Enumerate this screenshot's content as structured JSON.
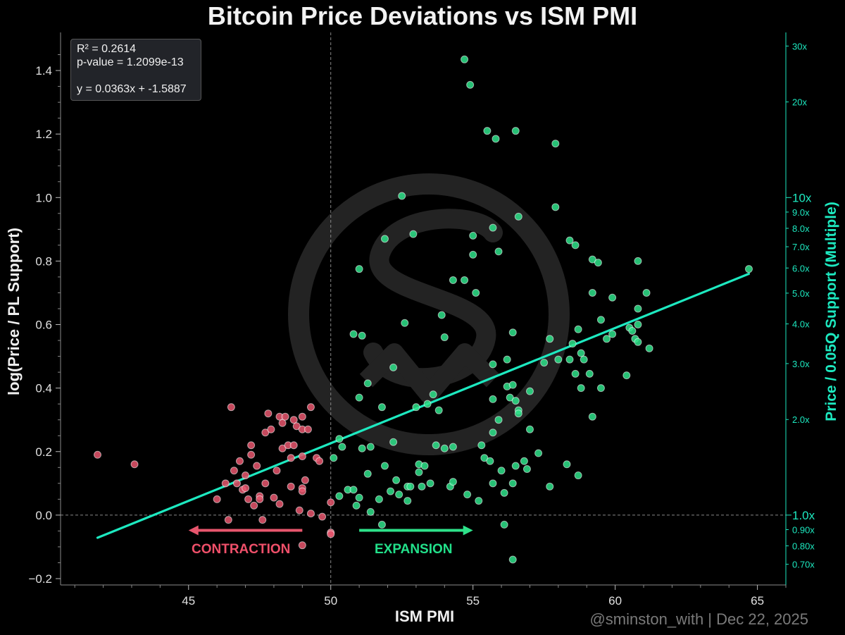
{
  "colors": {
    "background": "#000000",
    "contraction": "#e8566d",
    "expansion": "#2ee28a",
    "trend": "#1de9c0",
    "right_axis": "#1de9c0",
    "watermark": "#262626"
  },
  "stats": {
    "r2": "R² = 0.2614",
    "pvalue": "p-value = 1.2099e-13",
    "equation": "y = 0.0363x + -1.5887"
  },
  "annotations": {
    "contraction": "CONTRACTION",
    "expansion": "EXPANSION"
  },
  "credit": "@sminston_with  |  Dec 22, 2025",
  "watermark_icon": "sw-logo-icon",
  "chart_data": {
    "type": "scatter",
    "title": "Bitcoin Price Deviations vs ISM PMI",
    "xlabel": "ISM PMI",
    "ylabel": "log(Price / PL Support)",
    "y2label": "Price / 0.05Q Support (Multiple)",
    "xlim": [
      40.5,
      66
    ],
    "ylim": [
      -0.22,
      1.52
    ],
    "xticks": [
      45,
      50,
      55,
      60,
      65
    ],
    "yticks": [
      -0.2,
      0.0,
      0.2,
      0.4,
      0.6,
      0.8,
      1.0,
      1.2,
      1.4
    ],
    "ytick_labels": [
      "−0.2",
      "0.0",
      "0.2",
      "0.4",
      "0.6",
      "0.8",
      "1.0",
      "1.2",
      "1.4"
    ],
    "y2_ticks": [
      {
        "label": "0.70x",
        "value": 0.7,
        "major": false
      },
      {
        "label": "0.80x",
        "value": 0.8,
        "major": false
      },
      {
        "label": "0.90x",
        "value": 0.9,
        "major": false
      },
      {
        "label": "1.0x",
        "value": 1.0,
        "major": true
      },
      {
        "label": "2.0x",
        "value": 2.0,
        "major": false
      },
      {
        "label": "3.0x",
        "value": 3.0,
        "major": false
      },
      {
        "label": "4.0x",
        "value": 4.0,
        "major": false
      },
      {
        "label": "5.0x",
        "value": 5.0,
        "major": false
      },
      {
        "label": "6.0x",
        "value": 6.0,
        "major": false
      },
      {
        "label": "7.0x",
        "value": 7.0,
        "major": false
      },
      {
        "label": "8.0x",
        "value": 8.0,
        "major": false
      },
      {
        "label": "9.0x",
        "value": 9.0,
        "major": false
      },
      {
        "label": "10x",
        "value": 10.0,
        "major": true
      },
      {
        "label": "20x",
        "value": 20.0,
        "major": false
      },
      {
        "label": "30x",
        "value": 30.0,
        "major": false
      }
    ],
    "ref_x": 50,
    "ref_y": 0,
    "regression": {
      "slope": 0.0363,
      "intercept": -1.5887,
      "x_start": 41.8,
      "x_end": 64.7
    },
    "series": [
      {
        "name": "Contraction",
        "color": "#e8566d",
        "points": [
          [
            41.8,
            0.19
          ],
          [
            43.1,
            0.16
          ],
          [
            46.0,
            0.05
          ],
          [
            46.3,
            0.1
          ],
          [
            46.4,
            -0.015
          ],
          [
            46.5,
            0.34
          ],
          [
            46.6,
            0.14
          ],
          [
            46.7,
            0.1
          ],
          [
            46.8,
            0.17
          ],
          [
            46.9,
            0.08
          ],
          [
            47.0,
            0.125
          ],
          [
            47.1,
            0.05
          ],
          [
            47.2,
            0.19
          ],
          [
            47.2,
            0.22
          ],
          [
            47.3,
            0.03
          ],
          [
            47.4,
            0.155
          ],
          [
            47.5,
            0.06
          ],
          [
            47.6,
            -0.015
          ],
          [
            47.7,
            0.26
          ],
          [
            47.7,
            0.1
          ],
          [
            47.8,
            0.32
          ],
          [
            47.9,
            0.27
          ],
          [
            48.0,
            0.055
          ],
          [
            48.1,
            0.14
          ],
          [
            48.2,
            0.31
          ],
          [
            48.3,
            0.21
          ],
          [
            48.3,
            0.29
          ],
          [
            48.4,
            0.31
          ],
          [
            48.5,
            0.22
          ],
          [
            48.6,
            0.18
          ],
          [
            48.7,
            0.3
          ],
          [
            48.7,
            0.22
          ],
          [
            48.8,
            0.28
          ],
          [
            48.9,
            0.015
          ],
          [
            49.0,
            0.27
          ],
          [
            49.0,
            0.31
          ],
          [
            49.0,
            0.185
          ],
          [
            49.0,
            0.085
          ],
          [
            49.0,
            0.075
          ],
          [
            49.0,
            -0.095
          ],
          [
            49.1,
            0.11
          ],
          [
            49.2,
            0.27
          ],
          [
            49.3,
            0.34
          ],
          [
            49.3,
            0.005
          ],
          [
            49.5,
            0.18
          ],
          [
            49.6,
            0.17
          ],
          [
            49.7,
            -0.005
          ],
          [
            50.0,
            0.04
          ],
          [
            50.0,
            -0.055
          ],
          [
            50.0,
            -0.06
          ],
          [
            47.0,
            0.085
          ],
          [
            47.5,
            0.05
          ],
          [
            48.2,
            0.035
          ],
          [
            48.6,
            0.09
          ]
        ]
      },
      {
        "name": "Expansion",
        "color": "#2ee28a",
        "points": [
          [
            50.1,
            0.18
          ],
          [
            50.3,
            0.06
          ],
          [
            50.3,
            0.24
          ],
          [
            50.4,
            0.215
          ],
          [
            50.6,
            0.08
          ],
          [
            50.8,
            0.57
          ],
          [
            50.8,
            0.08
          ],
          [
            50.9,
            0.03
          ],
          [
            51.0,
            0.37
          ],
          [
            51.0,
            0.775
          ],
          [
            51.0,
            0.055
          ],
          [
            51.1,
            0.565
          ],
          [
            51.1,
            0.21
          ],
          [
            51.3,
            0.13
          ],
          [
            51.3,
            0.415
          ],
          [
            51.4,
            0.01
          ],
          [
            51.4,
            0.215
          ],
          [
            51.7,
            0.05
          ],
          [
            51.8,
            0.34
          ],
          [
            51.8,
            -0.03
          ],
          [
            51.9,
            0.155
          ],
          [
            51.9,
            0.87
          ],
          [
            52.1,
            0.075
          ],
          [
            52.2,
            0.465
          ],
          [
            52.2,
            0.23
          ],
          [
            52.3,
            0.11
          ],
          [
            52.4,
            0.065
          ],
          [
            52.5,
            1.005
          ],
          [
            52.6,
            0.605
          ],
          [
            52.7,
            0.045
          ],
          [
            52.7,
            0.09
          ],
          [
            52.8,
            0.09
          ],
          [
            52.9,
            0.885
          ],
          [
            53.0,
            0.34
          ],
          [
            53.1,
            0.135
          ],
          [
            53.1,
            0.16
          ],
          [
            53.2,
            0.09
          ],
          [
            53.3,
            0.155
          ],
          [
            53.4,
            0.35
          ],
          [
            53.5,
            0.1
          ],
          [
            53.6,
            0.38
          ],
          [
            53.7,
            0.22
          ],
          [
            53.8,
            0.33
          ],
          [
            53.9,
            0.63
          ],
          [
            54.0,
            0.56
          ],
          [
            54.0,
            0.21
          ],
          [
            54.2,
            0.09
          ],
          [
            54.3,
            0.74
          ],
          [
            54.3,
            0.105
          ],
          [
            54.3,
            0.215
          ],
          [
            54.7,
            1.435
          ],
          [
            54.9,
            1.355
          ],
          [
            54.7,
            0.74
          ],
          [
            54.8,
            0.065
          ],
          [
            55.0,
            0.82
          ],
          [
            55.0,
            0.88
          ],
          [
            55.1,
            0.7
          ],
          [
            55.2,
            0.045
          ],
          [
            55.3,
            0.22
          ],
          [
            55.4,
            0.18
          ],
          [
            55.5,
            1.21
          ],
          [
            55.6,
            0.17
          ],
          [
            55.7,
            0.26
          ],
          [
            55.7,
            0.1
          ],
          [
            55.7,
            0.365
          ],
          [
            55.7,
            0.475
          ],
          [
            55.7,
            0.905
          ],
          [
            55.8,
            1.185
          ],
          [
            55.9,
            0.83
          ],
          [
            55.9,
            0.3
          ],
          [
            56.0,
            0.14
          ],
          [
            56.1,
            0.07
          ],
          [
            56.1,
            -0.03
          ],
          [
            56.2,
            0.405
          ],
          [
            56.2,
            0.49
          ],
          [
            56.3,
            0.37
          ],
          [
            56.4,
            0.575
          ],
          [
            56.4,
            0.1
          ],
          [
            56.4,
            -0.14
          ],
          [
            56.5,
            1.21
          ],
          [
            56.5,
            0.36
          ],
          [
            56.5,
            0.155
          ],
          [
            56.6,
            0.33
          ],
          [
            56.6,
            0.94
          ],
          [
            56.8,
            0.17
          ],
          [
            56.9,
            0.145
          ],
          [
            57.0,
            0.39
          ],
          [
            57.3,
            0.195
          ],
          [
            57.5,
            0.48
          ],
          [
            57.7,
            0.09
          ],
          [
            57.7,
            0.555
          ],
          [
            57.9,
            1.17
          ],
          [
            57.9,
            0.97
          ],
          [
            58.0,
            0.49
          ],
          [
            58.3,
            0.16
          ],
          [
            58.4,
            0.865
          ],
          [
            58.4,
            0.49
          ],
          [
            58.5,
            0.54
          ],
          [
            58.6,
            0.85
          ],
          [
            58.6,
            0.445
          ],
          [
            58.7,
            0.125
          ],
          [
            58.7,
            0.585
          ],
          [
            58.8,
            0.51
          ],
          [
            58.8,
            0.4
          ],
          [
            58.9,
            0.49
          ],
          [
            59.1,
            0.445
          ],
          [
            59.2,
            0.31
          ],
          [
            59.2,
            0.805
          ],
          [
            59.2,
            0.7
          ],
          [
            59.4,
            0.795
          ],
          [
            59.5,
            0.4
          ],
          [
            59.5,
            0.615
          ],
          [
            59.7,
            0.555
          ],
          [
            59.9,
            0.685
          ],
          [
            59.9,
            0.57
          ],
          [
            60.4,
            0.44
          ],
          [
            60.5,
            0.59
          ],
          [
            60.6,
            0.58
          ],
          [
            60.7,
            0.555
          ],
          [
            60.8,
            0.8
          ],
          [
            60.8,
            0.65
          ],
          [
            60.8,
            0.545
          ],
          [
            60.8,
            0.6
          ],
          [
            61.1,
            0.7
          ],
          [
            61.2,
            0.525
          ],
          [
            64.7,
            0.775
          ],
          [
            56.4,
            0.41
          ],
          [
            57.0,
            0.27
          ],
          [
            56.6,
            0.32
          ]
        ]
      }
    ]
  }
}
